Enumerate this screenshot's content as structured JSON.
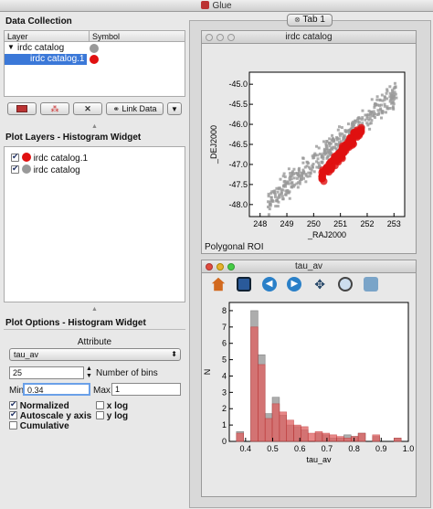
{
  "window": {
    "title": "Glue"
  },
  "data_collection": {
    "title": "Data Collection",
    "col_layer": "Layer",
    "col_symbol": "Symbol",
    "items": [
      {
        "label": "irdc catalog",
        "color": "#999999"
      },
      {
        "label": "irdc catalog.1",
        "color": "#e01010"
      }
    ],
    "buttons": {
      "link": "Link Data"
    }
  },
  "plot_layers": {
    "title": "Plot Layers - Histogram Widget",
    "items": [
      {
        "label": "irdc catalog.1",
        "color": "#e01010",
        "checked": true
      },
      {
        "label": "irdc catalog",
        "color": "#999999",
        "checked": true
      }
    ]
  },
  "plot_options": {
    "title": "Plot Options - Histogram Widget",
    "attribute_label": "Attribute",
    "attribute_value": "tau_av",
    "bins_value": "25",
    "bins_label": "Number of bins",
    "min_label": "Min",
    "min_value": "0.34",
    "max_label": "Max",
    "max_value": "1",
    "normalized": "Normalized",
    "autoscale": "Autoscale y axis",
    "cumulative": "Cumulative",
    "xlog": "x log",
    "ylog": "y log"
  },
  "tab": {
    "label": "Tab 1"
  },
  "scatter": {
    "title": "irdc catalog",
    "status": "Polygonal ROI",
    "xlabel": "_RAJ2000",
    "ylabel": "_DEJ2000",
    "xticks": [
      "248",
      "249",
      "250",
      "251",
      "252",
      "253"
    ],
    "yticks": [
      "-45.0",
      "-45.5",
      "-46.0",
      "-46.5",
      "-47.0",
      "-47.5",
      "-48.0"
    ]
  },
  "histogram": {
    "title": "tau_av"
  },
  "chart_data": [
    {
      "type": "scatter",
      "title": "irdc catalog",
      "xlabel": "_RAJ2000",
      "ylabel": "_DEJ2000",
      "xlim": [
        247.6,
        253.4
      ],
      "ylim": [
        -48.3,
        -44.7
      ],
      "series": [
        {
          "color": "#999999",
          "points": []
        },
        {
          "color": "#e01010",
          "points": []
        }
      ]
    },
    {
      "type": "bar",
      "xlabel": "tau_av",
      "ylabel": "N",
      "xlim": [
        0.34,
        1.0
      ],
      "ylim": [
        0,
        8.5
      ],
      "xticks": [
        "0.4",
        "0.5",
        "0.6",
        "0.7",
        "0.8",
        "0.9",
        "1.0"
      ],
      "yticks": [
        "0",
        "1",
        "2",
        "3",
        "4",
        "5",
        "6",
        "7",
        "8"
      ],
      "bin_edges": [
        0.34,
        0.3664,
        0.3928,
        0.4192,
        0.4456,
        0.472,
        0.4984,
        0.5248,
        0.5512,
        0.5776,
        0.604,
        0.6304,
        0.6568,
        0.6832,
        0.7096,
        0.736,
        0.7624,
        0.7888,
        0.8152,
        0.8416,
        0.868,
        0.8944,
        0.9208,
        0.9472,
        0.9736,
        1.0
      ],
      "series": [
        {
          "color": "#999999",
          "values": [
            0.0,
            0.6,
            0.0,
            8.0,
            5.3,
            1.7,
            2.7,
            1.6,
            1.0,
            0.9,
            0.7,
            0.0,
            0.5,
            0.4,
            0.2,
            0.2,
            0.4,
            0.3,
            0.5,
            0.0,
            0.3,
            0.0,
            0.0,
            0.2,
            0.0
          ]
        },
        {
          "color": "#e06060",
          "values": [
            0.0,
            0.5,
            0.0,
            7.0,
            4.7,
            1.4,
            2.3,
            1.8,
            1.3,
            1.0,
            0.9,
            0.5,
            0.6,
            0.5,
            0.4,
            0.3,
            0.2,
            0.3,
            0.5,
            0.0,
            0.4,
            0.0,
            0.0,
            0.2,
            0.0
          ]
        }
      ]
    }
  ]
}
